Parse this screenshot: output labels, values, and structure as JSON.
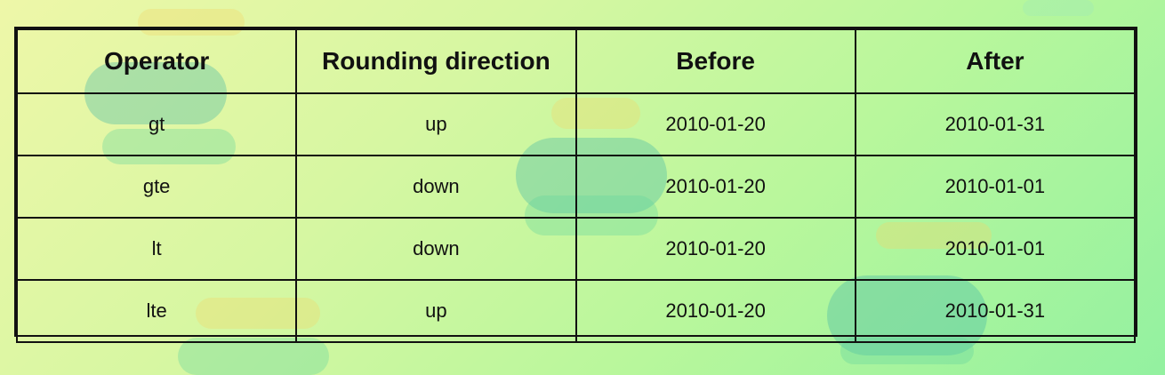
{
  "table": {
    "headers": [
      "Operator",
      "Rounding direction",
      "Before",
      "After"
    ],
    "rows": [
      [
        "gt",
        "up",
        "2010-01-20",
        "2010-01-31"
      ],
      [
        "gte",
        "down",
        "2010-01-20",
        "2010-01-01"
      ],
      [
        "lt",
        "down",
        "2010-01-20",
        "2010-01-01"
      ],
      [
        "lte",
        "up",
        "2010-01-20",
        "2010-01-31"
      ]
    ]
  }
}
